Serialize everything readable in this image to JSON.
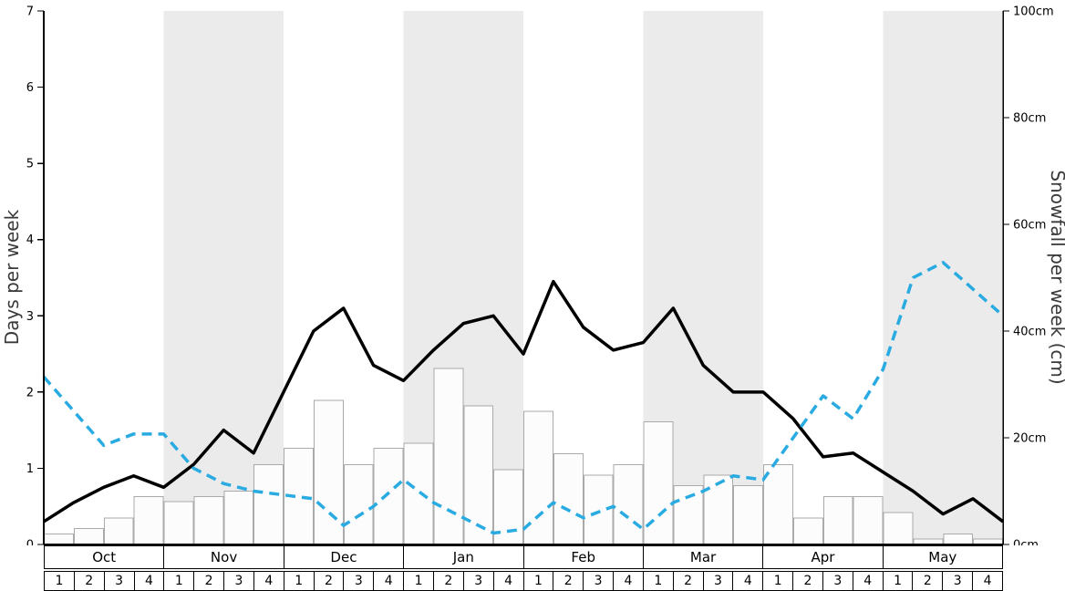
{
  "chart_data": {
    "type": "mixed-bar-line",
    "title": "",
    "xlabel": "",
    "left_axis": {
      "label": "Days per week",
      "range": [
        0,
        7
      ],
      "tick_values": [
        0,
        1,
        2,
        3,
        4,
        5,
        6,
        7
      ],
      "tick_labels": [
        "0",
        "1",
        "2",
        "3",
        "4",
        "5",
        "6",
        "7"
      ]
    },
    "right_axis": {
      "label": "Snowfall per week (cm)",
      "range": [
        0,
        100
      ],
      "tick_values": [
        0,
        20,
        40,
        60,
        80,
        100
      ],
      "tick_labels": [
        "0cm",
        "20cm",
        "40cm",
        "60cm",
        "80cm",
        "100cm"
      ]
    },
    "months": [
      "Oct",
      "Nov",
      "Dec",
      "Jan",
      "Feb",
      "Mar",
      "Apr",
      "May"
    ],
    "week_labels": [
      "1",
      "2",
      "3",
      "4"
    ],
    "shaded_month_indexes": [
      1,
      3,
      5,
      7
    ],
    "bars_cm": [
      2,
      3,
      5,
      9,
      8,
      9,
      10,
      15,
      18,
      27,
      15,
      18,
      19,
      33,
      26,
      14,
      25,
      17,
      13,
      15,
      23,
      11,
      13,
      11,
      15,
      5,
      9,
      9,
      6,
      1,
      2,
      1
    ],
    "series": [
      {
        "name": "days_per_week_line",
        "style": "solid",
        "color": "#000000",
        "axis": "left",
        "values": [
          0.3,
          0.55,
          0.75,
          0.9,
          0.75,
          1.05,
          1.5,
          1.2,
          2.0,
          2.8,
          3.1,
          2.35,
          2.15,
          2.55,
          2.9,
          3.0,
          2.5,
          3.45,
          2.85,
          2.55,
          2.65,
          3.1,
          2.35,
          2.0,
          2.0,
          1.65,
          1.15,
          1.2,
          0.95,
          0.7,
          0.4,
          0.6,
          0.3
        ]
      },
      {
        "name": "dashed_line",
        "style": "dashed",
        "color": "#29abe2",
        "axis": "left",
        "values": [
          2.2,
          1.75,
          1.3,
          1.45,
          1.45,
          1.0,
          0.8,
          0.7,
          0.65,
          0.6,
          0.25,
          0.5,
          0.85,
          0.55,
          0.35,
          0.15,
          0.2,
          0.55,
          0.35,
          0.5,
          0.2,
          0.55,
          0.7,
          0.9,
          0.85,
          1.4,
          1.95,
          1.65,
          2.3,
          3.5,
          3.7,
          3.35,
          3.0
        ]
      }
    ],
    "colors": {
      "band": "#ebebeb",
      "bar_fill": "#fcfcfc",
      "bar_stroke": "#aaaaaa",
      "axis": "#000000"
    },
    "legend": "none",
    "grid": "off"
  }
}
